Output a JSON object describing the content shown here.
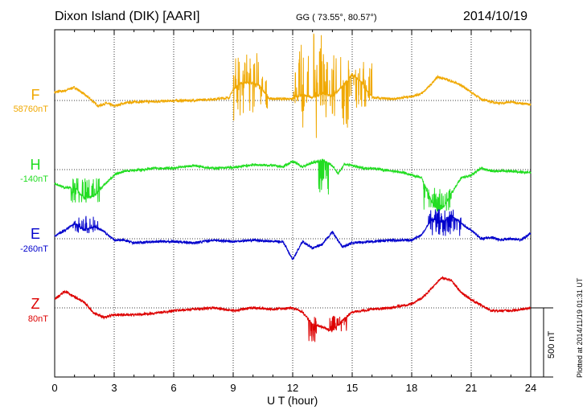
{
  "header": {
    "station": "Dixon Island (DIK)  [AARI]",
    "coords": "GG ( 73.55°,  80.57°)",
    "date": "2014/10/19"
  },
  "footer": {
    "xlabel": "U T (hour)",
    "plotted": "Plotted at 2014/11/19 01:31  UT",
    "scale_label": "500 nT"
  },
  "colors": {
    "F": "#f0a800",
    "H": "#22dd22",
    "E": "#0000cc",
    "Z": "#dd0000",
    "grid": "#000000"
  },
  "components": [
    {
      "name": "F",
      "baseline_label": "58760nT"
    },
    {
      "name": "H",
      "baseline_label": "-140nT"
    },
    {
      "name": "E",
      "baseline_label": "-260nT"
    },
    {
      "name": "Z",
      "baseline_label": "80nT"
    }
  ],
  "chart_data": {
    "type": "line",
    "x_unit": "UT hour",
    "xlim": [
      0,
      24
    ],
    "x_ticks": [
      0,
      3,
      6,
      9,
      12,
      15,
      18,
      21,
      24
    ],
    "x_tick_labels": [
      "0",
      "3",
      "6",
      "9",
      "12",
      "15",
      "18",
      "21",
      "24"
    ],
    "y_unit": "nT (deviation from baseline)",
    "scale_nT": 500,
    "grid": true,
    "series": [
      {
        "name": "F",
        "baseline_nT": 58760,
        "points": [
          [
            0,
            60
          ],
          [
            0.5,
            70
          ],
          [
            1,
            95
          ],
          [
            1.4,
            55
          ],
          [
            1.8,
            10
          ],
          [
            2.2,
            -40
          ],
          [
            2.6,
            -20
          ],
          [
            3,
            -40
          ],
          [
            3.5,
            -20
          ],
          [
            4,
            -10
          ],
          [
            5,
            -8
          ],
          [
            6,
            -2
          ],
          [
            7,
            0
          ],
          [
            8,
            10
          ],
          [
            8.8,
            20
          ],
          [
            9,
            80
          ],
          [
            9.3,
            120
          ],
          [
            9.8,
            130
          ],
          [
            10.3,
            110
          ],
          [
            10.8,
            15
          ],
          [
            11.5,
            10
          ],
          [
            12,
            15
          ],
          [
            12.5,
            40
          ],
          [
            13,
            20
          ],
          [
            13.5,
            50
          ],
          [
            14,
            30
          ],
          [
            14.5,
            100
          ],
          [
            15,
            190
          ],
          [
            15.5,
            130
          ],
          [
            16,
            20
          ],
          [
            16.5,
            15
          ],
          [
            17,
            10
          ],
          [
            17.5,
            20
          ],
          [
            18,
            30
          ],
          [
            18.5,
            50
          ],
          [
            19,
            120
          ],
          [
            19.3,
            170
          ],
          [
            19.6,
            160
          ],
          [
            20,
            140
          ],
          [
            20.5,
            110
          ],
          [
            21,
            60
          ],
          [
            21.5,
            10
          ],
          [
            22,
            -10
          ],
          [
            22.5,
            -20
          ],
          [
            23,
            -10
          ],
          [
            23.5,
            -20
          ],
          [
            24,
            -30
          ]
        ],
        "bursts": [
          [
            9,
            9.5,
            -150,
            350
          ],
          [
            9.5,
            10.3,
            -100,
            350
          ],
          [
            10.3,
            10.8,
            -60,
            180
          ],
          [
            12,
            12.3,
            -50,
            230
          ],
          [
            12.3,
            12.8,
            -220,
            420
          ],
          [
            13,
            13.5,
            -300,
            500
          ],
          [
            13.5,
            14.2,
            -220,
            370
          ],
          [
            14.4,
            15,
            -220,
            380
          ],
          [
            15,
            16,
            -60,
            280
          ]
        ]
      },
      {
        "name": "H",
        "baseline_nT": -140,
        "points": [
          [
            0,
            -100
          ],
          [
            0.5,
            -130
          ],
          [
            1,
            -130
          ],
          [
            1.5,
            -210
          ],
          [
            2,
            -190
          ],
          [
            2.5,
            -110
          ],
          [
            3,
            -40
          ],
          [
            3.5,
            -10
          ],
          [
            4.5,
            0
          ],
          [
            5,
            10
          ],
          [
            6,
            10
          ],
          [
            7,
            30
          ],
          [
            8,
            10
          ],
          [
            9,
            15
          ],
          [
            10,
            35
          ],
          [
            11,
            30
          ],
          [
            11.5,
            20
          ],
          [
            12,
            60
          ],
          [
            12.5,
            20
          ],
          [
            13,
            50
          ],
          [
            13.5,
            70
          ],
          [
            14,
            30
          ],
          [
            14.3,
            -30
          ],
          [
            14.6,
            40
          ],
          [
            15,
            30
          ],
          [
            15.5,
            10
          ],
          [
            16,
            10
          ],
          [
            17,
            -10
          ],
          [
            17.5,
            -20
          ],
          [
            18,
            -40
          ],
          [
            18.5,
            -60
          ],
          [
            19,
            -230
          ],
          [
            19.3,
            -300
          ],
          [
            19.6,
            -270
          ],
          [
            20,
            -170
          ],
          [
            20.5,
            -60
          ],
          [
            21,
            -40
          ],
          [
            21.5,
            10
          ],
          [
            22,
            -10
          ],
          [
            22.5,
            -10
          ],
          [
            23,
            -10
          ],
          [
            23.5,
            -20
          ],
          [
            24,
            -20
          ]
        ],
        "bursts": [
          [
            0.8,
            2.3,
            -250,
            -60
          ],
          [
            13.3,
            13.8,
            -180,
            20
          ],
          [
            18.6,
            20,
            -300,
            -120
          ]
        ]
      },
      {
        "name": "E",
        "baseline_nT": -260,
        "points": [
          [
            0,
            20
          ],
          [
            0.5,
            60
          ],
          [
            1,
            110
          ],
          [
            1.5,
            60
          ],
          [
            2,
            90
          ],
          [
            2.5,
            50
          ],
          [
            3,
            -10
          ],
          [
            3.5,
            -10
          ],
          [
            4,
            -30
          ],
          [
            5,
            -20
          ],
          [
            6,
            -20
          ],
          [
            7,
            -30
          ],
          [
            8,
            -10
          ],
          [
            9,
            -20
          ],
          [
            10,
            -10
          ],
          [
            11,
            -20
          ],
          [
            11.5,
            -20
          ],
          [
            12,
            -150
          ],
          [
            12.5,
            -20
          ],
          [
            13,
            -70
          ],
          [
            13.5,
            -40
          ],
          [
            14,
            50
          ],
          [
            14.5,
            -60
          ],
          [
            15,
            -30
          ],
          [
            16,
            -20
          ],
          [
            17,
            -10
          ],
          [
            18,
            -10
          ],
          [
            18.5,
            30
          ],
          [
            19,
            140
          ],
          [
            19.5,
            120
          ],
          [
            20,
            170
          ],
          [
            20.5,
            110
          ],
          [
            21,
            60
          ],
          [
            21.5,
            0
          ],
          [
            22,
            10
          ],
          [
            22.5,
            -10
          ],
          [
            23,
            0
          ],
          [
            23.5,
            -10
          ],
          [
            24,
            40
          ]
        ],
        "bursts": [
          [
            0.9,
            2.2,
            40,
            170
          ],
          [
            18.8,
            20.5,
            20,
            220
          ]
        ]
      },
      {
        "name": "Z",
        "baseline_nT": 80,
        "points": [
          [
            0,
            60
          ],
          [
            0.5,
            120
          ],
          [
            1,
            80
          ],
          [
            1.5,
            40
          ],
          [
            2,
            -40
          ],
          [
            2.5,
            -70
          ],
          [
            3,
            -50
          ],
          [
            4,
            -50
          ],
          [
            5,
            -40
          ],
          [
            6,
            -20
          ],
          [
            7,
            -10
          ],
          [
            8,
            0
          ],
          [
            9,
            -20
          ],
          [
            10,
            0
          ],
          [
            11,
            -10
          ],
          [
            12,
            0
          ],
          [
            12.5,
            -30
          ],
          [
            13,
            -120
          ],
          [
            13.5,
            -140
          ],
          [
            14,
            -170
          ],
          [
            14.5,
            -90
          ],
          [
            15,
            -30
          ],
          [
            16,
            -10
          ],
          [
            17,
            0
          ],
          [
            18,
            30
          ],
          [
            18.5,
            70
          ],
          [
            19,
            140
          ],
          [
            19.5,
            220
          ],
          [
            20,
            200
          ],
          [
            20.5,
            110
          ],
          [
            21,
            60
          ],
          [
            21.5,
            20
          ],
          [
            22,
            -20
          ],
          [
            23,
            -20
          ],
          [
            23.5,
            -10
          ],
          [
            24,
            0
          ]
        ],
        "bursts": [
          [
            12.8,
            13.2,
            -250,
            -60
          ],
          [
            13.8,
            14.8,
            -170,
            -40
          ]
        ]
      }
    ]
  }
}
